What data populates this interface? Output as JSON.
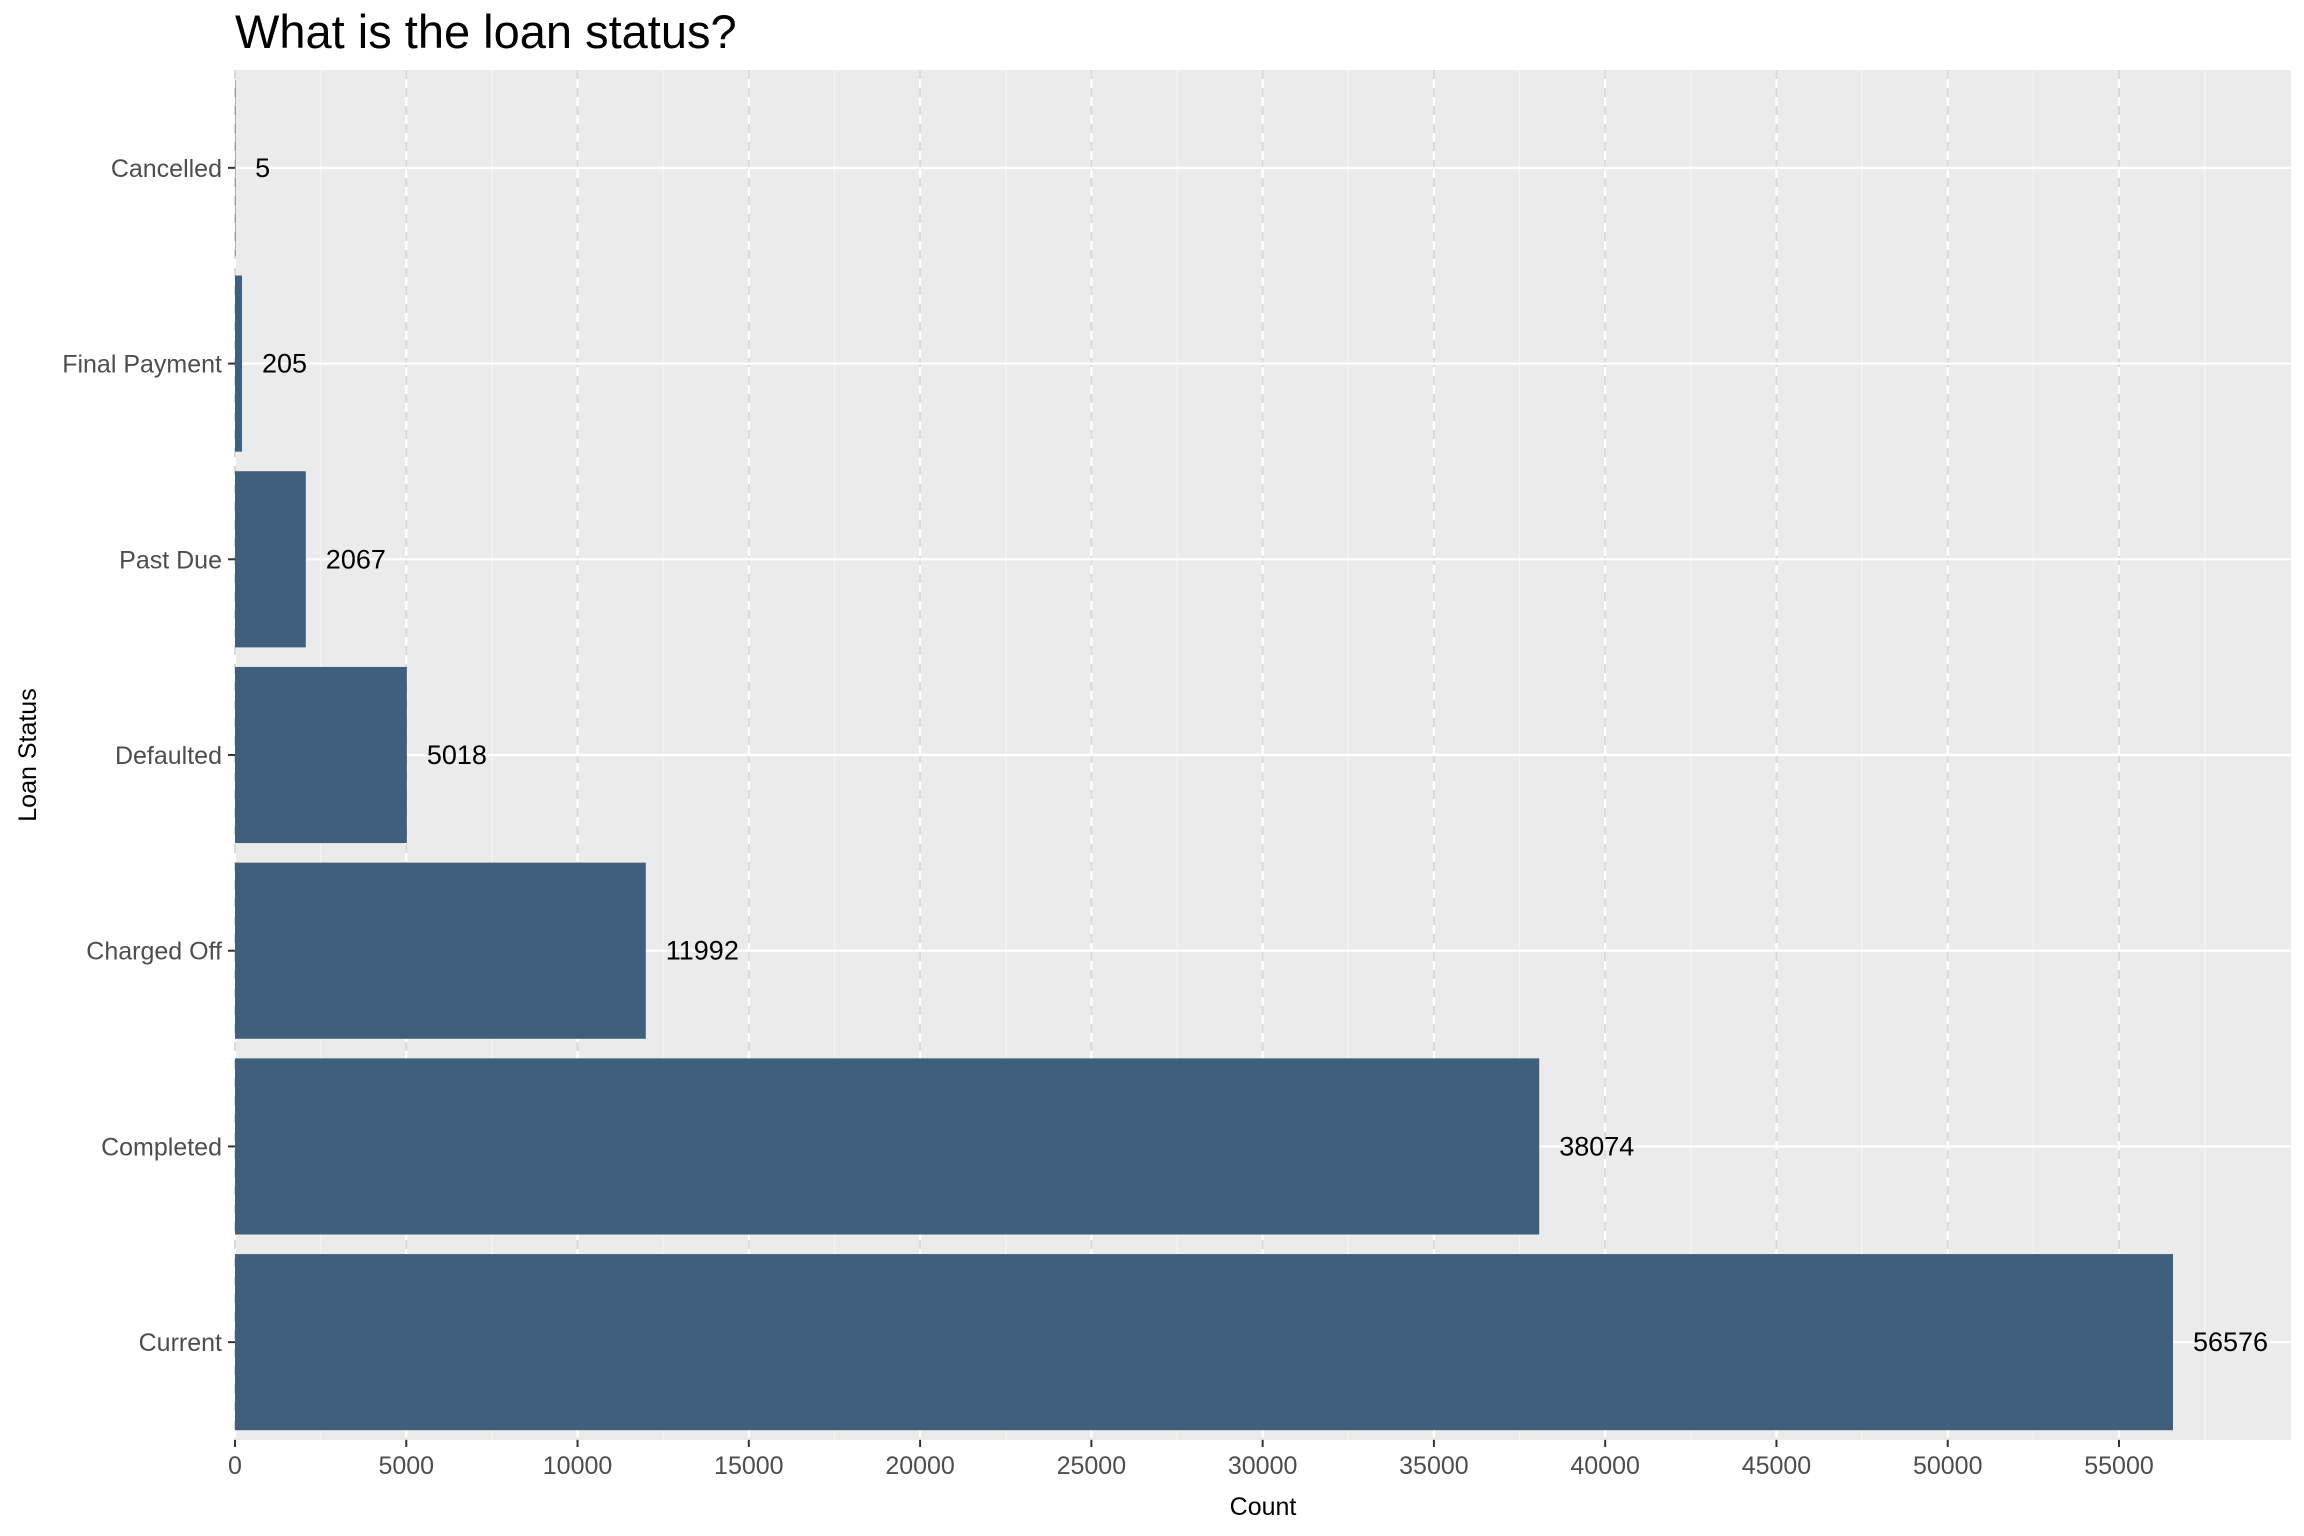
{
  "chart_data": {
    "type": "bar",
    "orientation": "horizontal",
    "title": "What is the loan status?",
    "xlabel": "Count",
    "ylabel": "Loan Status",
    "categories": [
      "Current",
      "Completed",
      "Charged Off",
      "Defaulted",
      "Past Due",
      "Final Payment",
      "Cancelled"
    ],
    "values": [
      56576,
      38074,
      11992,
      5018,
      2067,
      205,
      5
    ],
    "data_labels": [
      "56576",
      "38074",
      "11992",
      "5018",
      "2067",
      "205",
      "5"
    ],
    "xlim": [
      0,
      60000
    ],
    "xticks": [
      0,
      5000,
      10000,
      15000,
      20000,
      25000,
      30000,
      35000,
      40000,
      45000,
      50000,
      55000
    ],
    "xtick_labels": [
      "0",
      "5000",
      "10000",
      "15000",
      "20000",
      "25000",
      "30000",
      "35000",
      "40000",
      "45000",
      "50000",
      "55000"
    ],
    "grid": true,
    "legend": "none",
    "colors": {
      "bar": "#3f5f7d",
      "panel": "#ebebeb",
      "grid_major": "#ffffff",
      "grid_minor": "#f5f5f5",
      "grid_dashed": "#d9d9d9",
      "tick": "#333333",
      "tick_label": "#4d4d4d",
      "text": "#000000"
    }
  }
}
